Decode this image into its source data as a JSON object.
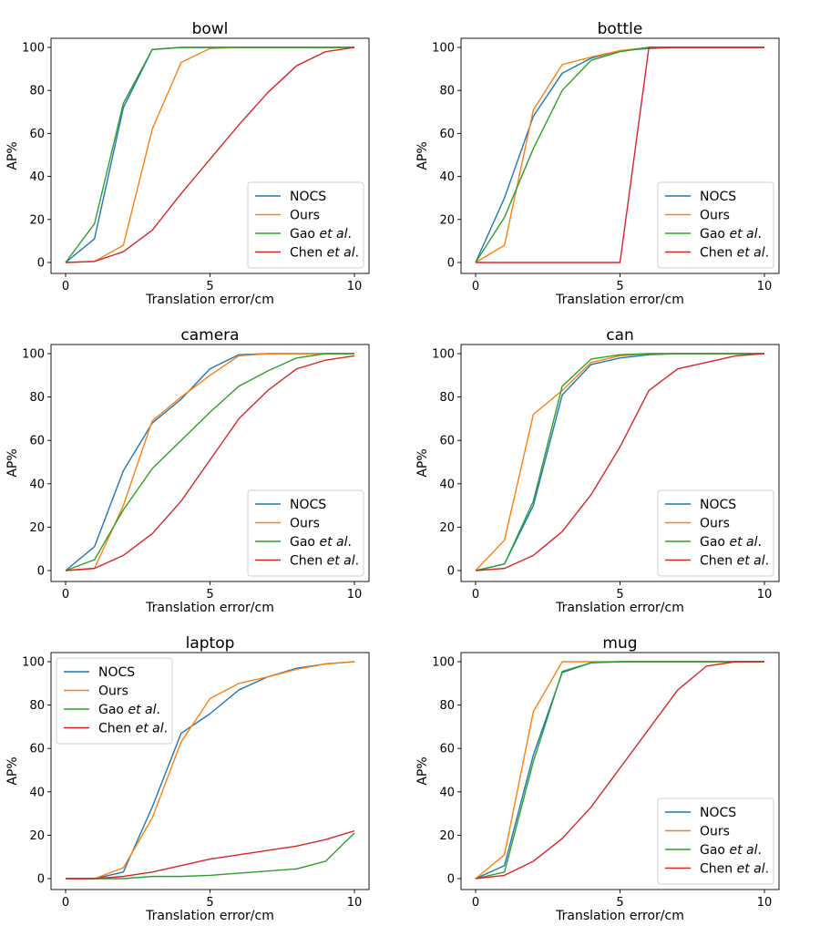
{
  "legend_labels": {
    "NOCS": [
      "NOCS"
    ],
    "Ours": [
      "Ours"
    ],
    "Gao": [
      "Gao ",
      "et al",
      "."
    ],
    "Chen": [
      "Chen ",
      "et al",
      "."
    ]
  },
  "colors": {
    "NOCS": "#1f77b4",
    "Ours": "#ff7f0e",
    "Gao": "#2ca02c",
    "Chen": "#d62728"
  },
  "chart_data": [
    {
      "type": "line",
      "title": "bowl",
      "xlabel": "Translation error/cm",
      "ylabel": "AP%",
      "xlim": [
        0,
        10
      ],
      "ylim": [
        0,
        100
      ],
      "xticks": [
        0,
        5,
        10
      ],
      "yticks": [
        0,
        20,
        40,
        60,
        80,
        100
      ],
      "grid": false,
      "legend_position": "lower-right",
      "x": [
        0,
        1,
        2,
        3,
        4,
        5,
        6,
        7,
        8,
        9,
        10
      ],
      "series": [
        {
          "key": "NOCS",
          "values": [
            0,
            11,
            72,
            99,
            100,
            100,
            100,
            100,
            100,
            100,
            100
          ]
        },
        {
          "key": "Ours",
          "values": [
            0,
            0.5,
            8,
            62,
            93,
            99.5,
            100,
            100,
            100,
            100,
            100
          ]
        },
        {
          "key": "Gao",
          "values": [
            0,
            18,
            74,
            99,
            100,
            100,
            100,
            100,
            100,
            100,
            100
          ]
        },
        {
          "key": "Chen",
          "values": [
            0,
            0.5,
            5,
            15,
            32,
            48,
            64,
            79,
            91.5,
            98,
            100
          ]
        }
      ]
    },
    {
      "type": "line",
      "title": "bottle",
      "xlabel": "Translation error/cm",
      "ylabel": "AP%",
      "xlim": [
        0,
        10
      ],
      "ylim": [
        0,
        100
      ],
      "xticks": [
        0,
        5,
        10
      ],
      "yticks": [
        0,
        20,
        40,
        60,
        80,
        100
      ],
      "grid": false,
      "legend_position": "lower-right",
      "x": [
        0,
        1,
        2,
        3,
        4,
        5,
        6,
        7,
        8,
        9,
        10
      ],
      "series": [
        {
          "key": "NOCS",
          "values": [
            0,
            30,
            68,
            88,
            95,
            98.5,
            99.5,
            100,
            100,
            100,
            100
          ]
        },
        {
          "key": "Ours",
          "values": [
            0,
            8,
            71,
            92,
            95.5,
            98.5,
            100,
            100,
            100,
            100,
            100
          ]
        },
        {
          "key": "Gao",
          "values": [
            0,
            21,
            53,
            80,
            94,
            98,
            100,
            100,
            100,
            100,
            100
          ]
        },
        {
          "key": "Chen",
          "x": [
            0,
            1,
            2,
            3,
            4,
            5,
            6,
            7,
            8,
            9,
            10
          ],
          "values": [
            0,
            0,
            0,
            0,
            0,
            0,
            100,
            100,
            100,
            100,
            100
          ]
        }
      ]
    },
    {
      "type": "line",
      "title": "camera",
      "xlabel": "Translation error/cm",
      "ylabel": "AP%",
      "xlim": [
        0,
        10
      ],
      "ylim": [
        0,
        100
      ],
      "xticks": [
        0,
        5,
        10
      ],
      "yticks": [
        0,
        20,
        40,
        60,
        80,
        100
      ],
      "grid": false,
      "legend_position": "lower-right",
      "x": [
        0,
        1,
        2,
        3,
        4,
        5,
        6,
        7,
        8,
        9,
        10
      ],
      "series": [
        {
          "key": "NOCS",
          "values": [
            0,
            11,
            46,
            68,
            79,
            93,
            99.5,
            100,
            100,
            100,
            100
          ]
        },
        {
          "key": "Ours",
          "values": [
            0,
            1,
            30,
            69,
            80,
            90,
            99,
            100,
            100,
            100,
            100
          ]
        },
        {
          "key": "Gao",
          "values": [
            0,
            5,
            28,
            47,
            60,
            73,
            85,
            92,
            98,
            100,
            100
          ]
        },
        {
          "key": "Chen",
          "values": [
            0,
            1,
            7,
            17,
            32,
            51,
            70,
            83,
            93,
            97,
            99
          ]
        }
      ]
    },
    {
      "type": "line",
      "title": "can",
      "xlabel": "Translation error/cm",
      "ylabel": "AP%",
      "xlim": [
        0,
        10
      ],
      "ylim": [
        0,
        100
      ],
      "xticks": [
        0,
        5,
        10
      ],
      "yticks": [
        0,
        20,
        40,
        60,
        80,
        100
      ],
      "grid": false,
      "legend_position": "lower-right",
      "x": [
        0,
        1,
        2,
        3,
        4,
        5,
        6,
        7,
        8,
        9,
        10
      ],
      "series": [
        {
          "key": "NOCS",
          "values": [
            0,
            3,
            30,
            81,
            95,
            98,
            99.5,
            100,
            100,
            100,
            100
          ]
        },
        {
          "key": "Ours",
          "values": [
            0,
            14,
            72,
            83,
            96,
            99,
            100,
            100,
            100,
            100,
            100
          ]
        },
        {
          "key": "Gao",
          "values": [
            0,
            3,
            32,
            85,
            97.5,
            99.5,
            100,
            100,
            100,
            100,
            100
          ]
        },
        {
          "key": "Chen",
          "values": [
            0,
            1,
            7,
            18,
            35,
            57,
            83,
            93,
            96,
            99,
            100
          ]
        }
      ]
    },
    {
      "type": "line",
      "title": "laptop",
      "xlabel": "Translation error/cm",
      "ylabel": "AP%",
      "xlim": [
        0,
        10
      ],
      "ylim": [
        0,
        100
      ],
      "xticks": [
        0,
        5,
        10
      ],
      "yticks": [
        0,
        20,
        40,
        60,
        80,
        100
      ],
      "grid": false,
      "legend_position": "upper-left",
      "x": [
        0,
        1,
        2,
        3,
        4,
        5,
        6,
        7,
        8,
        9,
        10
      ],
      "series": [
        {
          "key": "NOCS",
          "values": [
            0,
            0,
            3,
            33,
            67,
            76,
            87,
            93,
            97,
            99,
            100
          ]
        },
        {
          "key": "Ours",
          "values": [
            0,
            0,
            5,
            28,
            63,
            83,
            90,
            93,
            96.5,
            99,
            100
          ]
        },
        {
          "key": "Gao",
          "values": [
            0,
            0,
            0,
            1,
            1,
            1.5,
            2.5,
            3.5,
            4.5,
            8,
            21
          ]
        },
        {
          "key": "Chen",
          "values": [
            0,
            0,
            1,
            3,
            6,
            9,
            11,
            13,
            15,
            18,
            22
          ]
        }
      ]
    },
    {
      "type": "line",
      "title": "mug",
      "xlabel": "Translation error/cm",
      "ylabel": "AP%",
      "xlim": [
        0,
        10
      ],
      "ylim": [
        0,
        100
      ],
      "xticks": [
        0,
        5,
        10
      ],
      "yticks": [
        0,
        20,
        40,
        60,
        80,
        100
      ],
      "grid": false,
      "legend_position": "lower-right",
      "x": [
        0,
        1,
        2,
        3,
        4,
        5,
        6,
        7,
        8,
        9,
        10
      ],
      "series": [
        {
          "key": "NOCS",
          "values": [
            0,
            6,
            57,
            95,
            99.5,
            100,
            100,
            100,
            100,
            100,
            100
          ]
        },
        {
          "key": "Ours",
          "values": [
            0,
            11,
            77,
            100,
            100,
            100,
            100,
            100,
            100,
            100,
            100
          ]
        },
        {
          "key": "Gao",
          "values": [
            0,
            3,
            54,
            95.5,
            99.5,
            100,
            100,
            100,
            100,
            100,
            100
          ]
        },
        {
          "key": "Chen",
          "values": [
            0,
            1.5,
            8,
            18.5,
            33,
            51,
            69,
            87,
            98,
            100,
            100
          ]
        }
      ]
    }
  ]
}
